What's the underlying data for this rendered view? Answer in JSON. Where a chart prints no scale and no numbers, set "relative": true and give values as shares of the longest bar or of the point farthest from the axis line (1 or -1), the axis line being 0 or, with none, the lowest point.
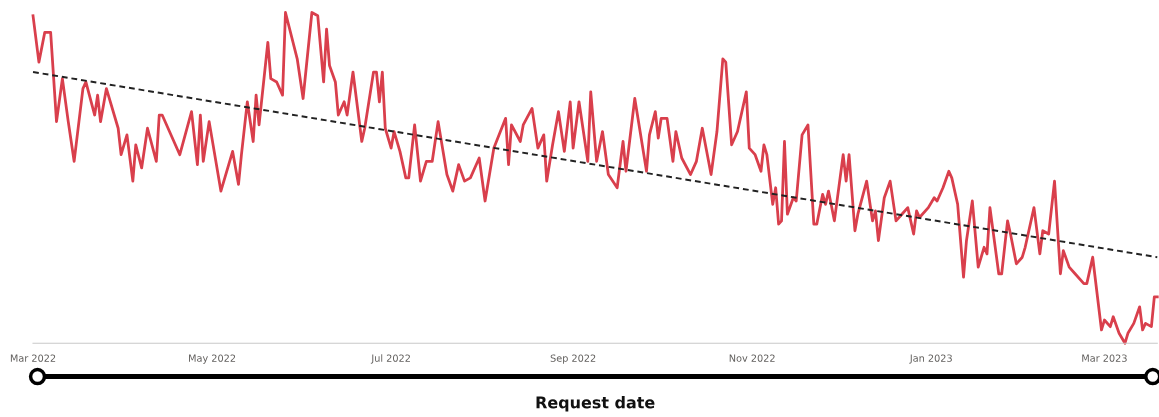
{
  "chart_data": {
    "type": "line",
    "relative": true,
    "xlabel": "Request date",
    "xlim": [
      "2022-03-01",
      "2023-03-19"
    ],
    "xticks": [
      {
        "value": "2022-03-01",
        "label": "Mar 2022"
      },
      {
        "value": "2022-05-01",
        "label": "May 2022"
      },
      {
        "value": "2022-07-01",
        "label": "Jul 2022"
      },
      {
        "value": "2022-09-01",
        "label": "Sep 2022"
      },
      {
        "value": "2022-11-01",
        "label": "Nov 2022"
      },
      {
        "value": "2023-01-01",
        "label": "Jan 2023"
      },
      {
        "value": "2023-03-01",
        "label": "Mar 2023"
      }
    ],
    "series": [
      {
        "color": "#d93f4c",
        "x": [
          "2022-03-01",
          "2022-03-03",
          "2022-03-05",
          "2022-03-07",
          "2022-03-09",
          "2022-03-11",
          "2022-03-13",
          "2022-03-15",
          "2022-03-18",
          "2022-03-19",
          "2022-03-22",
          "2022-03-23",
          "2022-03-24",
          "2022-03-26",
          "2022-03-30",
          "2022-03-31",
          "2022-04-02",
          "2022-04-04",
          "2022-04-05",
          "2022-04-07",
          "2022-04-09",
          "2022-04-12",
          "2022-04-13",
          "2022-04-14",
          "2022-04-20",
          "2022-04-24",
          "2022-04-26",
          "2022-04-27",
          "2022-04-28",
          "2022-04-30",
          "2022-05-04",
          "2022-05-08",
          "2022-05-10",
          "2022-05-11",
          "2022-05-13",
          "2022-05-15",
          "2022-05-16",
          "2022-05-17",
          "2022-05-20",
          "2022-05-21",
          "2022-05-23",
          "2022-05-25",
          "2022-05-26",
          "2022-05-30",
          "2022-06-01",
          "2022-06-04",
          "2022-06-06",
          "2022-06-08",
          "2022-06-09",
          "2022-06-10",
          "2022-06-12",
          "2022-06-13",
          "2022-06-15",
          "2022-06-16",
          "2022-06-18",
          "2022-06-21",
          "2022-06-22",
          "2022-06-25",
          "2022-06-26",
          "2022-06-27",
          "2022-06-28",
          "2022-06-29",
          "2022-07-01",
          "2022-07-02",
          "2022-07-04",
          "2022-07-06",
          "2022-07-07",
          "2022-07-09",
          "2022-07-11",
          "2022-07-13",
          "2022-07-15",
          "2022-07-17",
          "2022-07-20",
          "2022-07-22",
          "2022-07-24",
          "2022-07-26",
          "2022-07-28",
          "2022-07-31",
          "2022-08-02",
          "2022-08-05",
          "2022-08-09",
          "2022-08-10",
          "2022-08-11",
          "2022-08-14",
          "2022-08-15",
          "2022-08-18",
          "2022-08-20",
          "2022-08-22",
          "2022-08-23",
          "2022-08-25",
          "2022-08-27",
          "2022-08-29",
          "2022-08-31",
          "2022-09-01",
          "2022-09-03",
          "2022-09-06",
          "2022-09-07",
          "2022-09-09",
          "2022-09-11",
          "2022-09-13",
          "2022-09-16",
          "2022-09-18",
          "2022-09-19",
          "2022-09-22",
          "2022-09-26",
          "2022-09-27",
          "2022-09-29",
          "2022-09-30",
          "2022-10-01",
          "2022-10-03",
          "2022-10-05",
          "2022-10-06",
          "2022-10-08",
          "2022-10-11",
          "2022-10-13",
          "2022-10-15",
          "2022-10-18",
          "2022-10-20",
          "2022-10-22",
          "2022-10-23",
          "2022-10-25",
          "2022-10-27",
          "2022-10-30",
          "2022-10-31",
          "2022-11-02",
          "2022-11-04",
          "2022-11-05",
          "2022-11-06",
          "2022-11-08",
          "2022-11-09",
          "2022-11-10",
          "2022-11-11",
          "2022-11-12",
          "2022-11-13",
          "2022-11-15",
          "2022-11-16",
          "2022-11-18",
          "2022-11-20",
          "2022-11-22",
          "2022-11-23",
          "2022-11-25",
          "2022-11-26",
          "2022-11-27",
          "2022-11-29",
          "2022-12-02",
          "2022-12-03",
          "2022-12-04",
          "2022-12-06",
          "2022-12-07",
          "2022-12-10",
          "2022-12-12",
          "2022-12-13",
          "2022-12-14",
          "2022-12-16",
          "2022-12-18",
          "2022-12-20",
          "2022-12-22",
          "2022-12-24",
          "2022-12-26",
          "2022-12-27",
          "2022-12-28",
          "2022-12-31",
          "2023-01-02",
          "2023-01-03",
          "2023-01-05",
          "2023-01-07",
          "2023-01-08",
          "2023-01-10",
          "2023-01-12",
          "2023-01-13",
          "2023-01-15",
          "2023-01-17",
          "2023-01-19",
          "2023-01-20",
          "2023-01-21",
          "2023-01-24",
          "2023-01-25",
          "2023-01-27",
          "2023-01-28",
          "2023-01-30",
          "2023-02-01",
          "2023-02-02",
          "2023-02-05",
          "2023-02-07",
          "2023-02-08",
          "2023-02-10",
          "2023-02-12",
          "2023-02-14",
          "2023-02-15",
          "2023-02-17",
          "2023-02-19",
          "2023-02-22",
          "2023-02-23",
          "2023-02-25",
          "2023-02-28",
          "2023-03-01",
          "2023-03-03",
          "2023-03-04",
          "2023-03-06",
          "2023-03-08",
          "2023-03-09",
          "2023-03-11",
          "2023-03-13",
          "2023-03-14",
          "2023-03-15",
          "2023-03-17",
          "2023-03-18",
          "2023-03-19"
        ],
        "values": [
          0.99,
          0.85,
          0.94,
          0.94,
          0.67,
          0.8,
          0.67,
          0.55,
          0.77,
          0.79,
          0.69,
          0.75,
          0.67,
          0.77,
          0.65,
          0.57,
          0.63,
          0.49,
          0.6,
          0.53,
          0.65,
          0.55,
          0.69,
          0.69,
          0.57,
          0.7,
          0.54,
          0.69,
          0.55,
          0.67,
          0.46,
          0.58,
          0.48,
          0.57,
          0.73,
          0.61,
          0.75,
          0.66,
          0.91,
          0.8,
          0.79,
          0.75,
          1.0,
          0.86,
          0.74,
          1.0,
          0.99,
          0.79,
          0.95,
          0.84,
          0.79,
          0.69,
          0.73,
          0.69,
          0.82,
          0.61,
          0.65,
          0.82,
          0.82,
          0.73,
          0.82,
          0.65,
          0.59,
          0.64,
          0.58,
          0.5,
          0.5,
          0.66,
          0.49,
          0.55,
          0.55,
          0.67,
          0.51,
          0.46,
          0.54,
          0.49,
          0.5,
          0.56,
          0.43,
          0.59,
          0.68,
          0.54,
          0.66,
          0.61,
          0.66,
          0.71,
          0.59,
          0.63,
          0.49,
          0.6,
          0.7,
          0.58,
          0.73,
          0.59,
          0.73,
          0.55,
          0.76,
          0.55,
          0.64,
          0.51,
          0.47,
          0.61,
          0.52,
          0.74,
          0.52,
          0.63,
          0.7,
          0.62,
          0.68,
          0.68,
          0.55,
          0.64,
          0.56,
          0.51,
          0.55,
          0.65,
          0.51,
          0.64,
          0.86,
          0.85,
          0.6,
          0.64,
          0.76,
          0.59,
          0.57,
          0.52,
          0.6,
          0.57,
          0.42,
          0.47,
          0.36,
          0.37,
          0.61,
          0.39,
          0.44,
          0.43,
          0.63,
          0.66,
          0.36,
          0.36,
          0.45,
          0.42,
          0.46,
          0.37,
          0.57,
          0.49,
          0.57,
          0.34,
          0.39,
          0.49,
          0.37,
          0.4,
          0.31,
          0.44,
          0.49,
          0.37,
          0.39,
          0.41,
          0.33,
          0.4,
          0.38,
          0.41,
          0.44,
          0.43,
          0.47,
          0.52,
          0.5,
          0.42,
          0.2,
          0.31,
          0.43,
          0.23,
          0.29,
          0.27,
          0.41,
          0.21,
          0.21,
          0.37,
          0.33,
          0.24,
          0.26,
          0.29,
          0.41,
          0.27,
          0.34,
          0.33,
          0.49,
          0.21,
          0.28,
          0.23,
          0.21,
          0.18,
          0.18,
          0.26,
          0.04,
          0.07,
          0.05,
          0.08,
          0.03,
          0.0,
          0.03,
          0.06,
          0.11,
          0.04,
          0.06,
          0.05,
          0.14,
          0.14
        ]
      },
      {
        "type": "line",
        "color": "#222222",
        "line_style": "dashed",
        "x": [
          "2022-03-01",
          "2023-03-19"
        ],
        "values": [
          0.82,
          0.26
        ]
      }
    ]
  }
}
